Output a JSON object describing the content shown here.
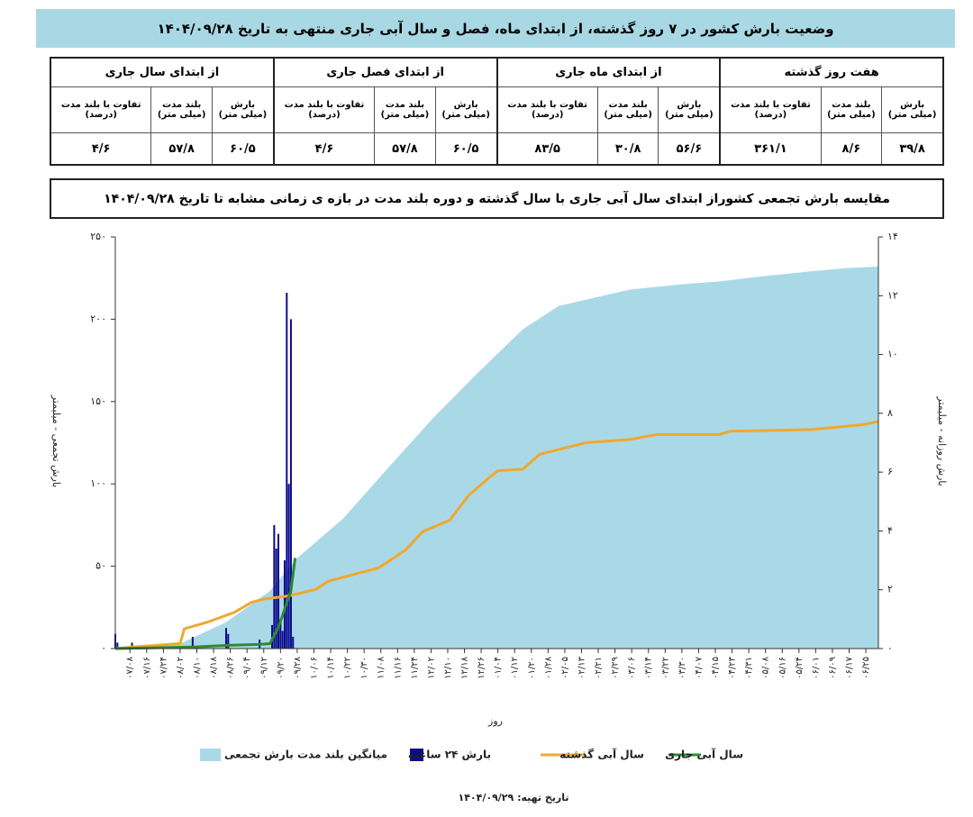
{
  "header": {
    "title": "وضعیت بارش کشور در ۷ روز گذشته، از ابتدای ماه، فصل و سال آبی جاری منتهی به تاریخ ۱۴۰۴/۰۹/۲۸"
  },
  "table": {
    "groups": [
      "هفت روز گذشته",
      "از ابتدای ماه جاری",
      "از ابتدای فصل جاری",
      "از ابتدای سال جاری"
    ],
    "headers": [
      [
        "بارش",
        "(میلی متر)"
      ],
      [
        "بلند مدت",
        "(میلی متر)"
      ],
      [
        "تفاوت با بلند مدت",
        "(درصد)"
      ],
      [
        "بارش",
        "(میلی متر)"
      ],
      [
        "بلند مدت",
        "(میلی متر)"
      ],
      [
        "تفاوت با بلند مدت",
        "(درصد)"
      ],
      [
        "بارش",
        "(میلی متر)"
      ],
      [
        "بلند مدت",
        "(میلی متر)"
      ],
      [
        "تفاوت با بلند مدت",
        "(درصد)"
      ],
      [
        "بارش",
        "(میلی متر)"
      ],
      [
        "بلند مدت",
        "(میلی متر)"
      ],
      [
        "تفاوت با بلند مدت",
        "(درصد)"
      ]
    ],
    "values": [
      "۳۹/۸",
      "۸/۶",
      "۳۶۱/۱",
      "۵۶/۶",
      "۳۰/۸",
      "۸۳/۵",
      "۶۰/۵",
      "۵۷/۸",
      "۴/۶",
      "۶۰/۵",
      "۵۷/۸",
      "۴/۶"
    ]
  },
  "chart_data": {
    "type": "combo",
    "title": "مقایسه بارش تجمعی کشوراز ابتدای سال آبی جاری با سال گذشته و دوره بلند مدت در بازه ی زمانی مشابه تا تاریخ ۱۴۰۴/۰۹/۲۸",
    "x_label": "روز",
    "y_label": "بارش تجمعی - میلیمتر",
    "y2_label": "بارش روزانه - میلیمتر",
    "xlim": [
      1,
      366
    ],
    "xticks": [
      {
        "value": 8,
        "label": "۰۷/۰۸"
      },
      {
        "value": 16,
        "label": "۰۷/۱۶"
      },
      {
        "value": 24,
        "label": "۰۷/۲۴"
      },
      {
        "value": 32,
        "label": "۰۸/۰۲"
      },
      {
        "value": 40,
        "label": "۰۸/۱۰"
      },
      {
        "value": 48,
        "label": "۰۸/۱۸"
      },
      {
        "value": 56,
        "label": "۰۸/۲۶"
      },
      {
        "value": 64,
        "label": "۰۹/۰۴"
      },
      {
        "value": 72,
        "label": "۰۹/۱۲"
      },
      {
        "value": 80,
        "label": "۰۹/۲۰"
      },
      {
        "value": 88,
        "label": "۰۹/۲۸"
      },
      {
        "value": 96,
        "label": "۱۰/۰۶"
      },
      {
        "value": 104,
        "label": "۱۰/۱۴"
      },
      {
        "value": 112,
        "label": "۱۰/۲۲"
      },
      {
        "value": 120,
        "label": "۱۰/۳۰"
      },
      {
        "value": 128,
        "label": "۱۱/۰۸"
      },
      {
        "value": 136,
        "label": "۱۱/۱۶"
      },
      {
        "value": 144,
        "label": "۱۱/۲۴"
      },
      {
        "value": 152,
        "label": "۱۲/۰۲"
      },
      {
        "value": 160,
        "label": "۱۲/۱۰"
      },
      {
        "value": 168,
        "label": "۱۲/۱۸"
      },
      {
        "value": 176,
        "label": "۱۲/۲۶"
      },
      {
        "value": 184,
        "label": "۰۱/۰۴"
      },
      {
        "value": 192,
        "label": "۰۱/۱۲"
      },
      {
        "value": 200,
        "label": "۰۱/۲۰"
      },
      {
        "value": 208,
        "label": "۰۱/۲۸"
      },
      {
        "value": 216,
        "label": "۰۲/۰۵"
      },
      {
        "value": 224,
        "label": "۰۲/۱۳"
      },
      {
        "value": 232,
        "label": "۰۲/۲۱"
      },
      {
        "value": 240,
        "label": "۰۲/۲۹"
      },
      {
        "value": 248,
        "label": "۰۳/۰۶"
      },
      {
        "value": 256,
        "label": "۰۳/۱۴"
      },
      {
        "value": 264,
        "label": "۰۳/۲۲"
      },
      {
        "value": 272,
        "label": "۰۳/۳۰"
      },
      {
        "value": 280,
        "label": "۰۴/۰۷"
      },
      {
        "value": 288,
        "label": "۰۴/۱۵"
      },
      {
        "value": 296,
        "label": "۰۴/۲۳"
      },
      {
        "value": 304,
        "label": "۰۴/۳۱"
      },
      {
        "value": 312,
        "label": "۰۵/۰۸"
      },
      {
        "value": 320,
        "label": "۰۵/۱۶"
      },
      {
        "value": 328,
        "label": "۰۵/۲۴"
      },
      {
        "value": 336,
        "label": "۰۶/۰۱"
      },
      {
        "value": 344,
        "label": "۰۶/۰۹"
      },
      {
        "value": 352,
        "label": "۰۶/۱۷"
      },
      {
        "value": 360,
        "label": "۰۶/۲۵"
      }
    ],
    "ylim": [
      0,
      250
    ],
    "yticks": [
      {
        "value": 0,
        "label": "۰"
      },
      {
        "value": 50,
        "label": "۵۰"
      },
      {
        "value": 100,
        "label": "۱۰۰"
      },
      {
        "value": 150,
        "label": "۱۵۰"
      },
      {
        "value": 200,
        "label": "۲۰۰"
      },
      {
        "value": 250,
        "label": "۲۵۰"
      }
    ],
    "y2lim": [
      0,
      14
    ],
    "y2ticks": [
      {
        "value": 0,
        "label": "۰"
      },
      {
        "value": 2,
        "label": "۲"
      },
      {
        "value": 4,
        "label": "۴"
      },
      {
        "value": 6,
        "label": "۶"
      },
      {
        "value": 8,
        "label": "۸"
      },
      {
        "value": 10,
        "label": "۱۰"
      },
      {
        "value": 12,
        "label": "۱۲"
      },
      {
        "value": 14,
        "label": "۱۴"
      }
    ],
    "series": [
      {
        "name": "میانگین بلند مدت بارش تجمعی",
        "kind": "area",
        "color": "#a9d9e7",
        "x": [
          1,
          20,
          32,
          54,
          75,
          88,
          110,
          131,
          153,
          174,
          196,
          213,
          230,
          247,
          270,
          290,
          310,
          333,
          350,
          366
        ],
        "values": [
          0,
          1,
          3,
          16,
          35,
          55,
          79,
          109,
          140,
          167,
          194,
          208,
          213,
          218,
          221,
          223,
          226,
          229,
          231,
          232
        ]
      },
      {
        "name": "بارش ۲۴ ساعته",
        "kind": "bar",
        "axis": "y2",
        "color": "#0a0a8c",
        "x": [
          1,
          2,
          9,
          38,
          54,
          55,
          70,
          76,
          77,
          78,
          79,
          80,
          81,
          82,
          83,
          84,
          85,
          86
        ],
        "values": [
          0.5,
          0.2,
          0.2,
          0.4,
          0.7,
          0.5,
          0.3,
          0.8,
          4.2,
          3.4,
          3.9,
          1.0,
          0.6,
          3.0,
          12.1,
          5.6,
          11.2,
          0.4
        ]
      },
      {
        "name": "سال آبی گذشته",
        "kind": "line",
        "color": "#f0a830",
        "x": [
          1,
          10,
          32,
          34,
          45,
          58,
          66,
          72,
          84,
          97,
          103,
          127,
          140,
          148,
          161,
          170,
          180,
          184,
          196,
          204,
          226,
          247,
          260,
          290,
          295,
          334,
          359,
          366
        ],
        "values": [
          0,
          1,
          3,
          12,
          16,
          22,
          28,
          30,
          32,
          36,
          41,
          49,
          60,
          71,
          78,
          93,
          104,
          108,
          109,
          118,
          125,
          127,
          130,
          130,
          132,
          133,
          136,
          138
        ]
      },
      {
        "name": "سال آبی جاری",
        "kind": "line",
        "color": "#2e8b2e",
        "x": [
          1,
          20,
          40,
          55,
          70,
          75,
          77,
          79,
          81,
          83,
          85,
          86,
          87
        ],
        "values": [
          0,
          0.5,
          1,
          2,
          2.5,
          3,
          8,
          13,
          20,
          28,
          35,
          45,
          55
        ]
      }
    ]
  },
  "footer": "تاریخ تهیه: ۱۴۰۴/۰۹/۲۹"
}
